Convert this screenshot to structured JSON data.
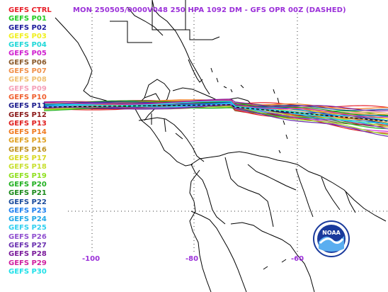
{
  "header": {
    "title": "MON 250505/0000V048  250 HPA 1092 DM - GFS OPR 00Z (DASHED)"
  },
  "legend": [
    {
      "label": "GEFS CTRL",
      "color": "#e8202a"
    },
    {
      "label": "GEFS P01",
      "color": "#22cc22"
    },
    {
      "label": "GEFS P02",
      "color": "#1a1a9c"
    },
    {
      "label": "GEFS P03",
      "color": "#f0f020"
    },
    {
      "label": "GEFS P04",
      "color": "#20d8d8"
    },
    {
      "label": "GEFS P05",
      "color": "#d020d0"
    },
    {
      "label": "GEFS P06",
      "color": "#8b5a2b"
    },
    {
      "label": "GEFS P07",
      "color": "#f0904a"
    },
    {
      "label": "GEFS P08",
      "color": "#f0c070"
    },
    {
      "label": "GEFS P09",
      "color": "#f5a0b8"
    },
    {
      "label": "GEFS P10",
      "color": "#f06030"
    },
    {
      "label": "GEFS P11",
      "color": "#1a1a8c"
    },
    {
      "label": "GEFS P12",
      "color": "#8b1a1a"
    },
    {
      "label": "GEFS P13",
      "color": "#e02020"
    },
    {
      "label": "GEFS P14",
      "color": "#f07a20"
    },
    {
      "label": "GEFS P15",
      "color": "#e0a020"
    },
    {
      "label": "GEFS P16",
      "color": "#c09020"
    },
    {
      "label": "GEFS P17",
      "color": "#d8d820"
    },
    {
      "label": "GEFS P18",
      "color": "#c8e030"
    },
    {
      "label": "GEFS P19",
      "color": "#90e020"
    },
    {
      "label": "GEFS P20",
      "color": "#20b020"
    },
    {
      "label": "GEFS P21",
      "color": "#1a8a1a"
    },
    {
      "label": "GEFS P22",
      "color": "#1a4a9c"
    },
    {
      "label": "GEFS P23",
      "color": "#2080f0"
    },
    {
      "label": "GEFS P24",
      "color": "#20a8e8"
    },
    {
      "label": "GEFS P25",
      "color": "#30d0f0"
    },
    {
      "label": "GEFS P26",
      "color": "#9050d0"
    },
    {
      "label": "GEFS P27",
      "color": "#6a30b0"
    },
    {
      "label": "GEFS P28",
      "color": "#7a1a9a"
    },
    {
      "label": "GEFS P29",
      "color": "#d020a0"
    },
    {
      "label": "GEFS P30",
      "color": "#20e0e8"
    }
  ],
  "axis": {
    "lon_labels": [
      "-100",
      "-80",
      "-60"
    ]
  },
  "colors": {
    "title": "#9b30d9",
    "coastline": "#000000",
    "gridline": "#333333",
    "noaa_blue": "#1a3a9c"
  },
  "logo": {
    "text": "NOAA"
  }
}
